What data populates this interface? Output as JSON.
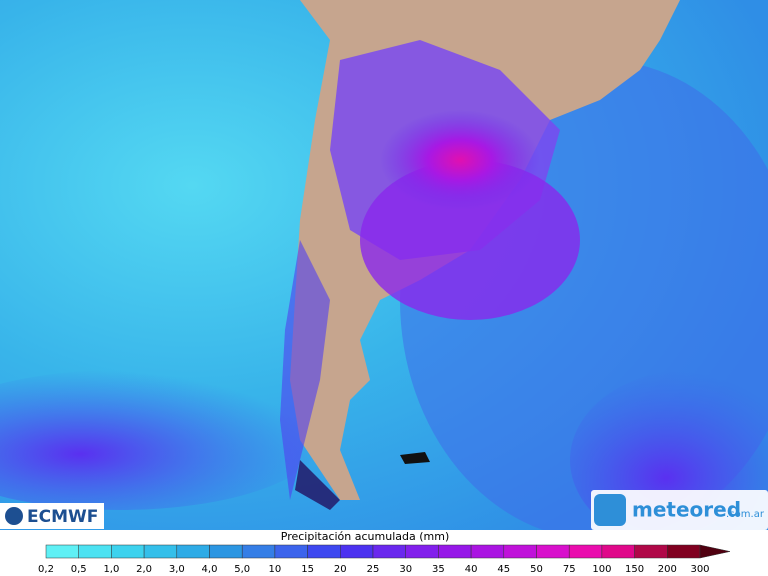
{
  "map": {
    "left_logo": "ECMWF",
    "right_logo": {
      "name": "meteored",
      "domain": ".com.ar"
    }
  },
  "legend": {
    "title": "Precipitación acumulada (mm)",
    "labels": [
      "0,2",
      "0,5",
      "1,0",
      "2,0",
      "3,0",
      "4,0",
      "5,0",
      "10",
      "15",
      "20",
      "25",
      "30",
      "35",
      "40",
      "45",
      "50",
      "75",
      "100",
      "150",
      "200",
      "300"
    ],
    "colors": [
      "#5ff0f5",
      "#4ce2f2",
      "#3dd2ee",
      "#34bfea",
      "#2eabe6",
      "#2c96e2",
      "#357ee6",
      "#3c64ec",
      "#3e48f0",
      "#4c32f0",
      "#6a28ee",
      "#8220ec",
      "#9618e8",
      "#aa14e2",
      "#c012da",
      "#d810cc",
      "#ea0cae",
      "#e0088a",
      "#b00848",
      "#800020"
    ],
    "arrow_color": "#500010"
  }
}
